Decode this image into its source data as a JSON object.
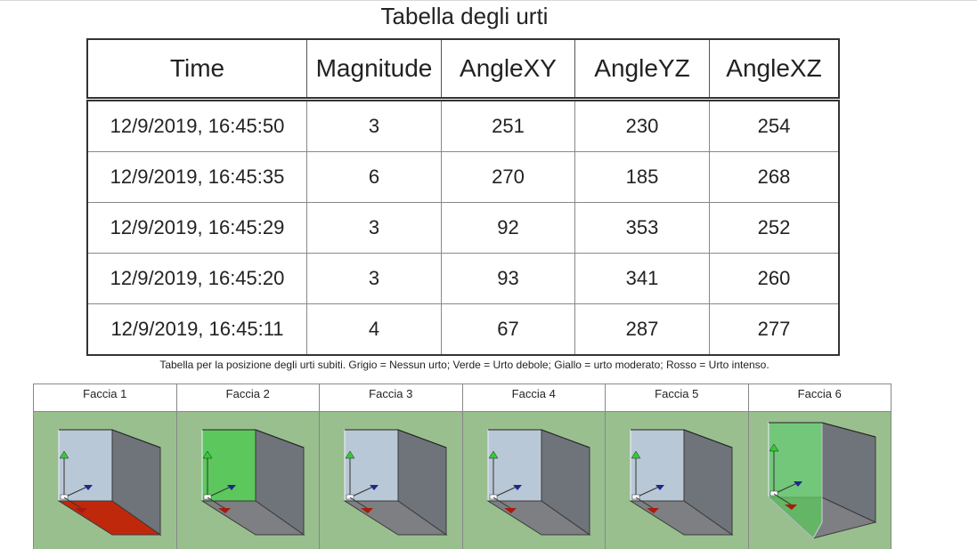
{
  "title": "Tabella degli urti",
  "table": {
    "headers": [
      "Time",
      "Magnitude",
      "AngleXY",
      "AngleYZ",
      "AngleXZ"
    ],
    "rows": [
      [
        "12/9/2019, 16:45:50",
        "3",
        "251",
        "230",
        "254"
      ],
      [
        "12/9/2019, 16:45:35",
        "6",
        "270",
        "185",
        "268"
      ],
      [
        "12/9/2019, 16:45:29",
        "3",
        "92",
        "353",
        "252"
      ],
      [
        "12/9/2019, 16:45:20",
        "3",
        "93",
        "341",
        "260"
      ],
      [
        "12/9/2019, 16:45:11",
        "4",
        "67",
        "287",
        "277"
      ]
    ]
  },
  "caption": "Tabella per la posizione degli urti subiti. Grigio = Nessun urto; Verde = Urto debole; Giallo = urto moderato; Rosso = Urto intenso.",
  "faces": [
    {
      "label": "Faccia 1",
      "highlight": "floor",
      "color": "#c0280c"
    },
    {
      "label": "Faccia 2",
      "highlight": "back",
      "color": "#5cc75c"
    },
    {
      "label": "Faccia 3",
      "highlight": "none",
      "color": ""
    },
    {
      "label": "Faccia 4",
      "highlight": "none",
      "color": ""
    },
    {
      "label": "Faccia 5",
      "highlight": "none",
      "color": ""
    },
    {
      "label": "Faccia 6",
      "highlight": "left",
      "color": "#5cc75c"
    }
  ],
  "colors": {
    "background_3d": "#99bf8f",
    "cube_back": "#b9c8d6",
    "cube_side": "#6f747a",
    "cube_floor": "#7d7f82",
    "axis_green": "#33cc33",
    "axis_blue": "#1b2a88",
    "axis_red": "#aa1a0a"
  }
}
